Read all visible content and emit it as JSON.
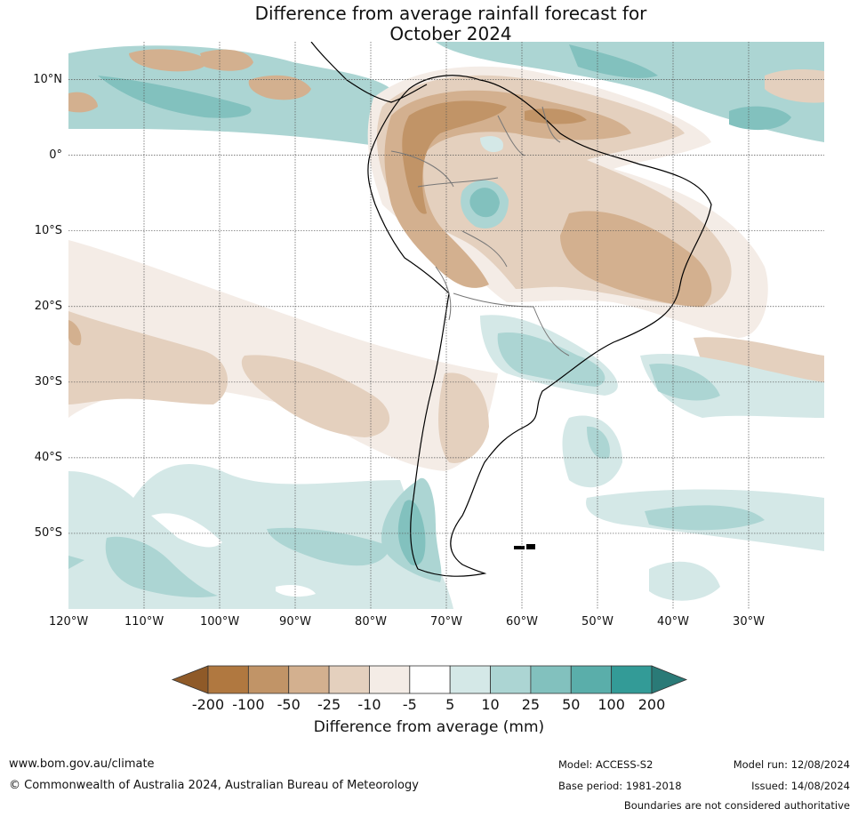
{
  "title": {
    "line1": "Difference from average rainfall forecast for",
    "line2": "October 2024"
  },
  "map": {
    "lat_labels": [
      "10°N",
      "0°",
      "10°S",
      "20°S",
      "30°S",
      "40°S",
      "50°S"
    ],
    "lat_values": [
      10,
      0,
      -10,
      -20,
      -30,
      -40,
      -50
    ],
    "lon_labels": [
      "120°W",
      "110°W",
      "100°W",
      "90°W",
      "80°W",
      "70°W",
      "60°W",
      "50°W",
      "40°W",
      "30°W"
    ],
    "lon_values": [
      -120,
      -110,
      -100,
      -90,
      -80,
      -70,
      -60,
      -50,
      -40,
      -30
    ],
    "extent": {
      "lon_min": -120,
      "lon_max": -20,
      "lat_min": -60,
      "lat_max": 15
    }
  },
  "colorbar": {
    "ticks": [
      "-200",
      "-100",
      "-50",
      "-25",
      "-10",
      "-5",
      "5",
      "10",
      "25",
      "50",
      "100",
      "200"
    ],
    "colors": [
      "#b07840",
      "#c19467",
      "#d3b08f",
      "#e4d0be",
      "#f4ece6",
      "#ffffff",
      "#d4e8e7",
      "#acd5d3",
      "#82c1be",
      "#5aaeaa",
      "#339b97"
    ],
    "under_color": "#8f5a28",
    "over_color": "#2a7a77",
    "label": "Difference from average (mm)"
  },
  "footer": {
    "url": "www.bom.gov.au/climate",
    "copyright": "© Commonwealth of Australia 2024, Australian Bureau of Meteorology",
    "model": "Model: ACCESS-S2",
    "model_run": "Model run: 12/08/2024",
    "base_period": "Base period: 1981-2018",
    "issued": "Issued: 14/08/2024",
    "disclaimer": "Boundaries are not considered authoritative"
  }
}
